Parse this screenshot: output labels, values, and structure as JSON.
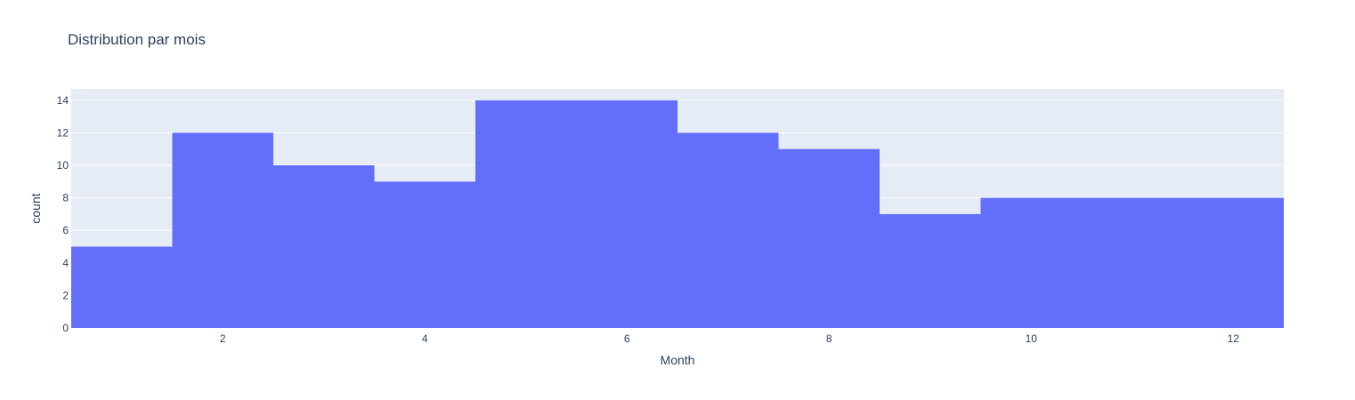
{
  "chart_data": {
    "type": "bar",
    "title": "Distribution par mois",
    "xlabel": "Month",
    "ylabel": "count",
    "x": [
      1,
      2,
      3,
      4,
      5,
      6,
      7,
      8,
      9,
      10,
      11,
      12
    ],
    "values": [
      5,
      12,
      10,
      9,
      14,
      14,
      12,
      11,
      7,
      8,
      8,
      8
    ],
    "xlim": [
      0.5,
      12.5
    ],
    "ylim": [
      0,
      14.7
    ],
    "xticks": [
      2,
      4,
      6,
      8,
      10,
      12
    ],
    "yticks": [
      0,
      2,
      4,
      6,
      8,
      10,
      12,
      14
    ],
    "grid": true,
    "legend": "none",
    "bar_gap": 0,
    "colors": {
      "bar": "#636efa",
      "plot_bg": "#e5ecf6",
      "grid": "#ffffff",
      "text": "#2a3f5f"
    }
  }
}
